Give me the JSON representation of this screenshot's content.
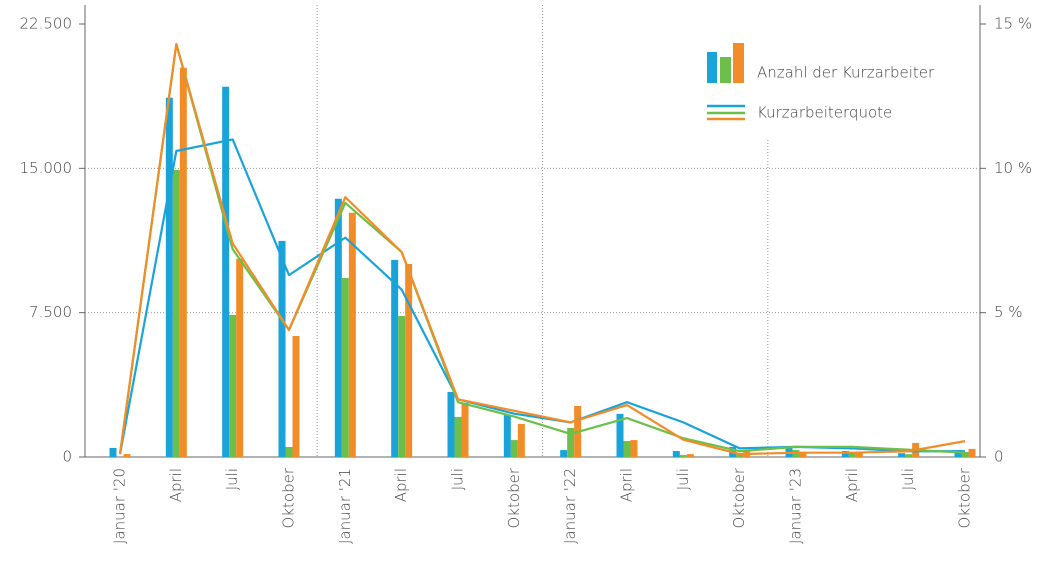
{
  "chart_data": {
    "type": "bar_line",
    "categories": [
      "Januar '20",
      "April",
      "Juli",
      "Oktober",
      "Januar '21",
      "April",
      "Juli",
      "Oktober",
      "Januar '22",
      "April",
      "Juli",
      "Oktober",
      "Januar '23",
      "April",
      "Juli",
      "Oktober"
    ],
    "legend": {
      "bars": "Anzahl der Kurzarbeiter",
      "lines": "Kurzarbeiterquote"
    },
    "bar_series": [
      {
        "color": "#1aa3d9",
        "values": [
          470,
          18670,
          19240,
          11230,
          13420,
          10240,
          3380,
          2180,
          360,
          2240,
          310,
          520,
          570,
          310,
          200,
          360
        ]
      },
      {
        "color": "#6cbf4a",
        "values": [
          0,
          14920,
          7380,
          520,
          9300,
          7330,
          2080,
          880,
          1510,
          830,
          100,
          200,
          360,
          200,
          150,
          260
        ]
      },
      {
        "color": "#f28c28",
        "values": [
          150,
          20230,
          10300,
          6290,
          12690,
          10030,
          2810,
          1720,
          2650,
          880,
          150,
          310,
          260,
          200,
          730,
          420
        ]
      }
    ],
    "line_series": [
      {
        "color": "#1aa3d9",
        "axis": "y2",
        "values": [
          0.1,
          10.6,
          11.0,
          6.3,
          7.6,
          5.8,
          2.0,
          1.5,
          1.2,
          1.9,
          1.2,
          0.3,
          0.35,
          0.3,
          0.2,
          0.2
        ]
      },
      {
        "color": "#6cbf4a",
        "axis": "y2",
        "values": [
          0.1,
          14.3,
          7.2,
          4.4,
          8.8,
          7.1,
          1.9,
          1.4,
          0.8,
          1.35,
          0.65,
          0.2,
          0.35,
          0.35,
          0.25,
          0.15
        ]
      },
      {
        "color": "#f28c28",
        "axis": "y2",
        "values": [
          0.1,
          14.3,
          7.4,
          4.4,
          9.0,
          7.1,
          2.0,
          1.6,
          1.2,
          1.8,
          0.6,
          0.1,
          0.15,
          0.15,
          0.2,
          0.55
        ]
      }
    ],
    "ylim": [
      0,
      22500
    ],
    "yticks": [
      0,
      {
        "value": 7500,
        "label": "7.500"
      },
      {
        "value": 15000,
        "label": "15.000"
      },
      {
        "value": 22500,
        "label": "22.500"
      }
    ],
    "y2lim": [
      0,
      15
    ],
    "y2ticks": [
      0,
      {
        "value": 5,
        "label": "5 %"
      },
      {
        "value": 10,
        "label": "10 %"
      },
      {
        "value": 15,
        "label": "15 %"
      }
    ],
    "grid": true
  }
}
